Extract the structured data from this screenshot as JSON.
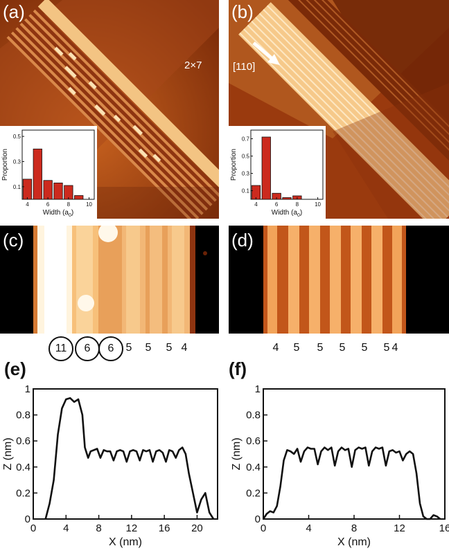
{
  "panels": {
    "a": {
      "label": "(a)",
      "annotation": "2×7"
    },
    "b": {
      "label": "(b)",
      "annotation": "[110]"
    },
    "c": {
      "label": "(c)"
    },
    "d": {
      "label": "(d)"
    },
    "e": {
      "label": "(e)"
    },
    "f": {
      "label": "(f)"
    }
  },
  "colors": {
    "stm_dark": "#3a0a02",
    "stm_mid": "#b0521a",
    "stm_light": "#fbe2b4",
    "bar": "#cc2a1e",
    "line": "#111111"
  },
  "widths_c": [
    {
      "value": "11",
      "circled": true
    },
    {
      "value": "6",
      "circled": true
    },
    {
      "value": "6",
      "circled": true
    },
    {
      "value": "5",
      "circled": false
    },
    {
      "value": "5",
      "circled": false
    },
    {
      "value": "5",
      "circled": false
    },
    {
      "value": "4",
      "circled": false
    }
  ],
  "widths_d": [
    "4",
    "5",
    "5",
    "5",
    "5",
    "5",
    "4"
  ],
  "chart_data": [
    {
      "id": "inset-a",
      "type": "bar",
      "xlabel": "Width (a",
      "xlabel_sub": "0",
      "ylabel": "Proportion",
      "x": [
        4,
        5,
        6,
        7,
        8,
        9
      ],
      "values": [
        0.16,
        0.4,
        0.15,
        0.13,
        0.11,
        0.03
      ],
      "xticks": [
        "4",
        "6",
        "8",
        "10"
      ],
      "yticks": [
        "0.1",
        "0.3",
        "0.5"
      ],
      "ylim": [
        0,
        0.55
      ],
      "xlim": [
        3.5,
        10.5
      ]
    },
    {
      "id": "inset-b",
      "type": "bar",
      "xlabel": "Width (a",
      "xlabel_sub": "0",
      "ylabel": "Proportion",
      "x": [
        4,
        5,
        6,
        7,
        8,
        9
      ],
      "values": [
        0.16,
        0.72,
        0.07,
        0.02,
        0.04,
        0.0
      ],
      "xticks": [
        "4",
        "6",
        "8",
        "10"
      ],
      "yticks": [
        "0.1",
        "0.3",
        "0.5",
        "0.7"
      ],
      "ylim": [
        0,
        0.8
      ],
      "xlim": [
        3.5,
        10.5
      ]
    },
    {
      "id": "profile-e",
      "type": "line",
      "xlabel": "X (nm)",
      "ylabel": "Z (nm)",
      "xlim": [
        0,
        22.5
      ],
      "ylim": [
        0,
        1
      ],
      "xticks": [
        "0",
        "4",
        "8",
        "12",
        "16",
        "20"
      ],
      "yticks": [
        "0",
        "0.2",
        "0.4",
        "0.6",
        "0.8",
        "1"
      ],
      "x": [
        1.5,
        2.0,
        2.5,
        3.0,
        3.5,
        4.0,
        4.5,
        5.0,
        5.5,
        6.0,
        6.3,
        6.7,
        7.0,
        7.4,
        7.8,
        8.2,
        8.6,
        9.0,
        9.4,
        9.8,
        10.2,
        10.6,
        11.0,
        11.4,
        11.8,
        12.2,
        12.6,
        13.0,
        13.4,
        13.8,
        14.2,
        14.6,
        15.0,
        15.4,
        15.8,
        16.2,
        16.6,
        17.0,
        17.4,
        17.8,
        18.2,
        18.6,
        19.0,
        19.5,
        20.0,
        20.5,
        21.0,
        21.5,
        22.0
      ],
      "y": [
        0.0,
        0.12,
        0.3,
        0.65,
        0.85,
        0.92,
        0.93,
        0.9,
        0.92,
        0.8,
        0.55,
        0.47,
        0.52,
        0.53,
        0.54,
        0.47,
        0.53,
        0.52,
        0.52,
        0.45,
        0.52,
        0.53,
        0.52,
        0.44,
        0.52,
        0.53,
        0.52,
        0.45,
        0.53,
        0.52,
        0.53,
        0.44,
        0.52,
        0.53,
        0.51,
        0.44,
        0.53,
        0.52,
        0.47,
        0.53,
        0.55,
        0.5,
        0.35,
        0.2,
        0.05,
        0.15,
        0.2,
        0.05,
        0.0
      ]
    },
    {
      "id": "profile-f",
      "type": "line",
      "xlabel": "X (nm)",
      "ylabel": "Z (nm)",
      "xlim": [
        0,
        16
      ],
      "ylim": [
        0,
        1
      ],
      "xticks": [
        "0",
        "4",
        "8",
        "12",
        "16"
      ],
      "yticks": [
        "0",
        "0.2",
        "0.4",
        "0.6",
        "0.8",
        "1"
      ],
      "x": [
        0.0,
        0.3,
        0.6,
        0.9,
        1.2,
        1.5,
        1.8,
        2.1,
        2.4,
        2.7,
        3.0,
        3.3,
        3.6,
        3.9,
        4.2,
        4.5,
        4.8,
        5.1,
        5.4,
        5.7,
        6.0,
        6.3,
        6.6,
        6.9,
        7.2,
        7.5,
        7.8,
        8.1,
        8.4,
        8.7,
        9.0,
        9.3,
        9.6,
        9.9,
        10.2,
        10.5,
        10.8,
        11.1,
        11.4,
        11.7,
        12.0,
        12.3,
        12.6,
        12.9,
        13.2,
        13.5,
        13.8,
        14.1,
        14.4,
        14.7,
        15.0,
        15.3,
        15.6
      ],
      "y": [
        0.0,
        0.04,
        0.06,
        0.05,
        0.1,
        0.25,
        0.45,
        0.53,
        0.52,
        0.5,
        0.54,
        0.44,
        0.52,
        0.55,
        0.54,
        0.54,
        0.42,
        0.52,
        0.55,
        0.53,
        0.55,
        0.41,
        0.52,
        0.55,
        0.53,
        0.54,
        0.4,
        0.53,
        0.55,
        0.54,
        0.55,
        0.41,
        0.52,
        0.55,
        0.54,
        0.55,
        0.41,
        0.52,
        0.53,
        0.51,
        0.52,
        0.45,
        0.5,
        0.52,
        0.5,
        0.35,
        0.12,
        0.02,
        0.0,
        0.0,
        0.03,
        0.02,
        0.0
      ]
    }
  ]
}
